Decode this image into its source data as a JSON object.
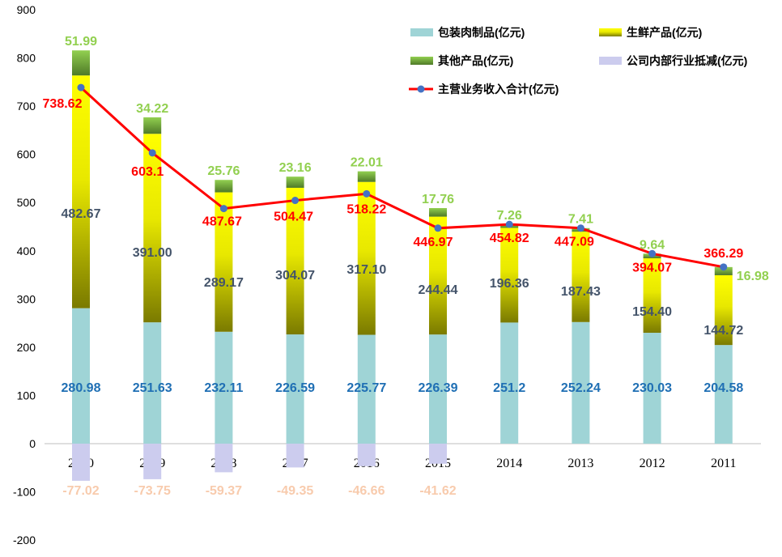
{
  "chart_data": {
    "type": "bar",
    "stacked": true,
    "categories": [
      "2020",
      "2019",
      "2018",
      "2017",
      "2016",
      "2015",
      "2014",
      "2013",
      "2012",
      "2011"
    ],
    "ylim": [
      -200,
      900
    ],
    "yticks": [
      "900",
      "800",
      "700",
      "600",
      "500",
      "400",
      "300",
      "200",
      "100",
      "0",
      "-100",
      "-200"
    ],
    "ytick_values": [
      900,
      800,
      700,
      600,
      500,
      400,
      300,
      200,
      100,
      0,
      -100,
      -200
    ],
    "grid": false,
    "legend_position": "top-right",
    "series": [
      {
        "name": "包装肉制品(亿元)",
        "kind": "bar",
        "color": "#9fd4d6",
        "label_color": "#1f6fb4",
        "values": [
          280.98,
          251.63,
          232.11,
          226.59,
          225.77,
          226.39,
          251.2,
          252.24,
          230.03,
          204.58
        ],
        "labels": [
          "280.98",
          "251.63",
          "232.11",
          "226.59",
          "225.77",
          "226.39",
          "251.2",
          "252.24",
          "230.03",
          "204.58"
        ]
      },
      {
        "name": "生鲜产品(亿元)",
        "kind": "bar",
        "color": "#ffff00",
        "color_dark": "#7a7a00",
        "label_color": "#44546a",
        "values": [
          482.67,
          391.0,
          289.17,
          304.07,
          317.1,
          244.44,
          196.36,
          187.43,
          154.4,
          144.72
        ],
        "labels": [
          "482.67",
          "391.00",
          "289.17",
          "304.07",
          "317.10",
          "244.44",
          "196.36",
          "187.43",
          "154.40",
          "144.72"
        ]
      },
      {
        "name": "其他产品(亿元)",
        "kind": "bar",
        "color": "#92d050",
        "color_dark": "#4f7a28",
        "label_color": "#92d050",
        "values": [
          51.99,
          34.22,
          25.76,
          23.16,
          22.01,
          17.76,
          7.26,
          7.41,
          9.64,
          16.98
        ],
        "labels": [
          "51.99",
          "34.22",
          "25.76",
          "23.16",
          "22.01",
          "17.76",
          "7.26",
          "7.41",
          "9.64",
          "16.98"
        ]
      },
      {
        "name": "公司内部行业抵减(亿元)",
        "kind": "bar",
        "color": "#ccccee",
        "label_color": "#f8cbad",
        "values": [
          -77.02,
          -73.75,
          -59.37,
          -49.35,
          -46.66,
          -41.62,
          null,
          null,
          null,
          null
        ],
        "labels": [
          "-77.02",
          "-73.75",
          "-59.37",
          "-49.35",
          "-46.66",
          "-41.62",
          "",
          "",
          "",
          ""
        ]
      },
      {
        "name": "主营业务收入合计(亿元)",
        "kind": "line",
        "color": "#ff0000",
        "marker_color": "#4472c4",
        "label_color": "#ff0000",
        "values": [
          738.62,
          603.1,
          487.67,
          504.47,
          518.22,
          446.97,
          454.82,
          447.09,
          394.07,
          366.29
        ],
        "labels": [
          "738.62",
          "603.1",
          "487.67",
          "504.47",
          "518.22",
          "446.97",
          "454.82",
          "447.09",
          "394.07",
          "366.29"
        ]
      }
    ]
  }
}
